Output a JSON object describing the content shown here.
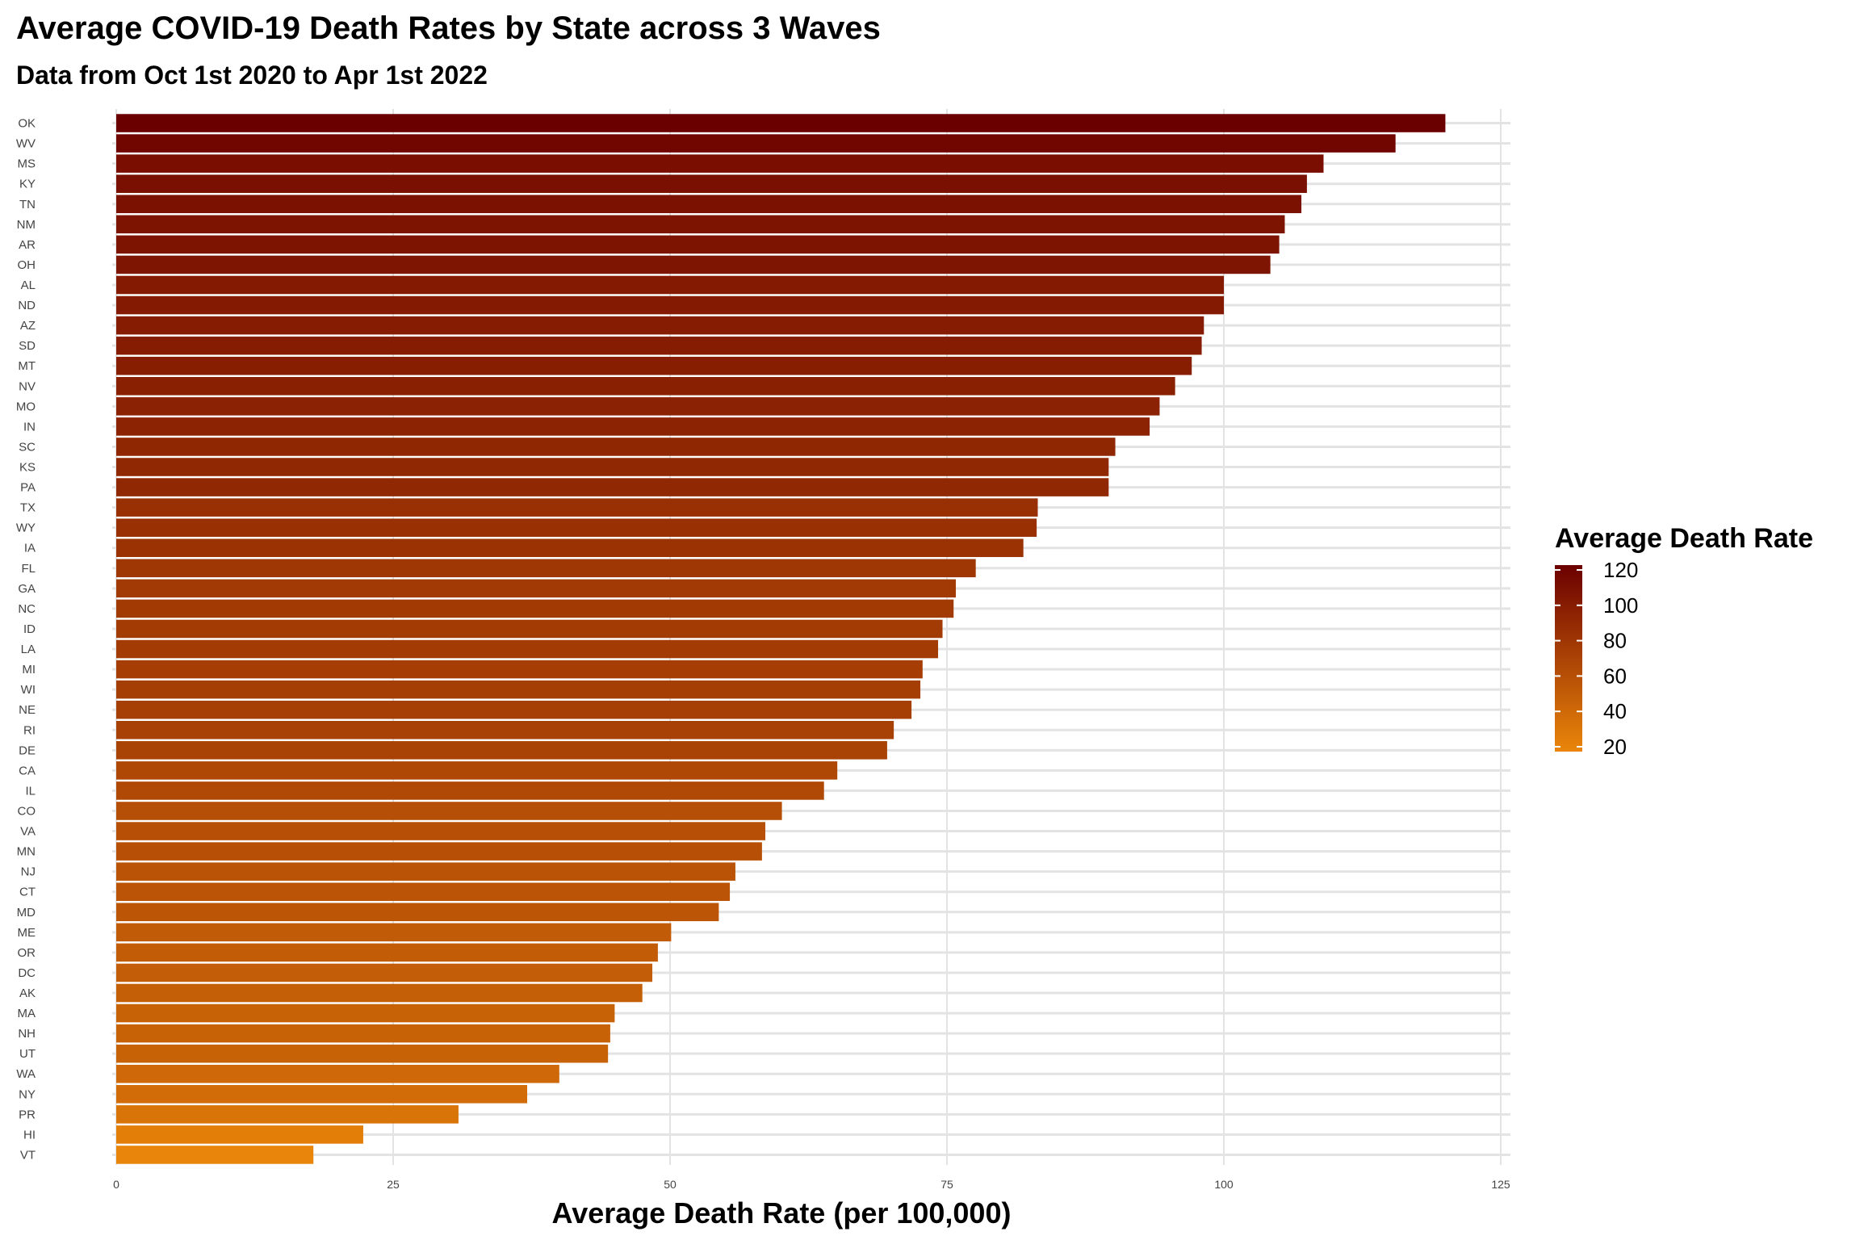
{
  "chart_data": {
    "type": "bar",
    "orientation": "horizontal",
    "title": "Average COVID-19 Death Rates by State across 3 Waves",
    "subtitle": "Data from Oct 1st 2020 to Apr 1st 2022",
    "xlabel": "Average Death Rate (per 100,000)",
    "ylabel": "",
    "xlim": [
      0,
      125
    ],
    "xticks": [
      "0",
      "25",
      "50",
      "75",
      "100",
      "125"
    ],
    "grid": true,
    "legend": {
      "title": "Average Death Rate",
      "placement": "right",
      "ticks": [
        "120",
        "100",
        "80",
        "60",
        "40",
        "20"
      ],
      "range": [
        17,
        120
      ],
      "color_high": "#6b0000",
      "color_low": "#ea860a"
    },
    "categories": [
      "OK",
      "WV",
      "MS",
      "KY",
      "TN",
      "NM",
      "AR",
      "OH",
      "AL",
      "ND",
      "AZ",
      "SD",
      "MT",
      "NV",
      "MO",
      "IN",
      "SC",
      "KS",
      "PA",
      "TX",
      "WY",
      "IA",
      "FL",
      "GA",
      "NC",
      "ID",
      "LA",
      "MI",
      "WI",
      "NE",
      "RI",
      "DE",
      "CA",
      "IL",
      "CO",
      "VA",
      "MN",
      "NJ",
      "CT",
      "MD",
      "ME",
      "OR",
      "DC",
      "AK",
      "MA",
      "NH",
      "UT",
      "WA",
      "NY",
      "PR",
      "HI",
      "VT"
    ],
    "values": [
      120.0,
      115.5,
      109.0,
      107.5,
      107.0,
      105.5,
      105.0,
      104.2,
      100.0,
      100.0,
      98.2,
      98.0,
      97.1,
      95.6,
      94.2,
      93.3,
      90.2,
      89.6,
      89.6,
      83.2,
      83.1,
      81.9,
      77.6,
      75.8,
      75.6,
      74.6,
      74.2,
      72.8,
      72.6,
      71.8,
      70.2,
      69.6,
      65.1,
      63.9,
      60.1,
      58.6,
      58.3,
      55.9,
      55.4,
      54.4,
      50.1,
      48.9,
      48.4,
      47.5,
      45.0,
      44.6,
      44.4,
      40.0,
      37.1,
      30.9,
      22.3,
      17.8
    ]
  }
}
